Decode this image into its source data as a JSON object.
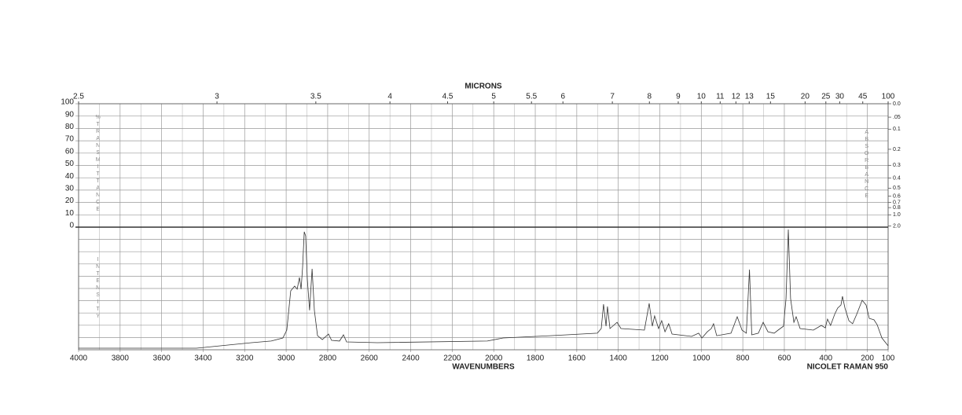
{
  "chart_data": {
    "type": "line",
    "title": "MICRONS",
    "xlabel": "WAVENUMBERS",
    "note": "NICOLET RAMAN 950",
    "ylabel": "%TRANSMITTANCE",
    "yright_label": "ABSORBANCE",
    "y2label": "INTENSITY",
    "xlim": [
      4000,
      100
    ],
    "xticks": [
      4000,
      3800,
      3600,
      3400,
      3200,
      3000,
      2800,
      2600,
      2400,
      2200,
      2000,
      1800,
      1600,
      1400,
      1200,
      1000,
      800,
      600,
      400,
      200,
      100
    ],
    "xminor": [
      3900,
      3700,
      3500,
      3300,
      3100,
      2900,
      2700,
      2500,
      2300,
      2100,
      1900,
      1700,
      1500,
      1300,
      1100,
      900,
      700,
      500,
      300
    ],
    "micron_ticks": [
      2.5,
      3,
      3.5,
      4,
      4.5,
      5,
      5.5,
      6,
      7,
      8,
      9,
      10,
      11,
      12,
      13,
      15,
      20,
      25,
      30,
      45,
      100
    ],
    "ylim": [
      0,
      100
    ],
    "yticks": [
      0,
      10,
      20,
      30,
      40,
      50,
      60,
      70,
      80,
      90,
      100
    ],
    "absorbance_ticks": [
      {
        "value": 0,
        "label": "0.0"
      },
      {
        "value": 0.05,
        "label": ".05"
      },
      0.1,
      0.2,
      0.3,
      0.4,
      0.5,
      0.6,
      0.7,
      0.8,
      {
        "value": 1,
        "label": "1.0"
      },
      {
        "value": 2,
        "label": "2.0"
      }
    ],
    "y2lim": [
      0,
      100
    ],
    "y2grid": [
      10,
      20,
      30,
      40,
      50,
      60,
      70,
      80,
      90
    ],
    "grid": true,
    "series": [
      {
        "color": "#333333",
        "axis": "y2",
        "x": [
          4000,
          3432,
          3318,
          3167,
          3072,
          3016,
          2997,
          2978,
          2959,
          2947,
          2936,
          2928,
          2921,
          2913,
          2906,
          2898,
          2887,
          2875,
          2864,
          2849,
          2826,
          2796,
          2781,
          2743,
          2724,
          2709,
          2561,
          2031,
          1955,
          1728,
          1501,
          1482,
          1471,
          1459,
          1452,
          1440,
          1406,
          1387,
          1274,
          1251,
          1236,
          1225,
          1206,
          1191,
          1175,
          1157,
          1141,
          1047,
          1013,
          997,
          971,
          952,
          941,
          926,
          857,
          827,
          804,
          783,
          768,
          757,
          725,
          702,
          679,
          649,
          630,
          604,
          592,
          581,
          570,
          554,
          543,
          524,
          460,
          422,
          403,
          392,
          377,
          358,
          343,
          327,
          320,
          308,
          289,
          271,
          252,
          225,
          206,
          191,
          168,
          153,
          130,
          100
        ],
        "values": [
          1.3,
          1.3,
          3.2,
          5.8,
          7.1,
          9.6,
          16,
          48.1,
          51.9,
          49.4,
          59,
          49.4,
          67.3,
          96.2,
          92.9,
          57.7,
          32.1,
          66,
          32.1,
          11.5,
          8.3,
          12.8,
          7.7,
          7.1,
          12.2,
          6.4,
          5.8,
          7.1,
          9.6,
          11.5,
          13.5,
          17.3,
          37.2,
          19.2,
          35.3,
          17.3,
          22.4,
          17.3,
          16,
          37.8,
          19.2,
          27.6,
          17.3,
          23.7,
          14.7,
          21.2,
          12.8,
          10.9,
          13.5,
          9.6,
          14.7,
          17.3,
          21.2,
          11.5,
          13.5,
          26.9,
          16,
          13.5,
          65.4,
          12.2,
          13.5,
          22.4,
          14.7,
          13.5,
          16,
          19.2,
          41.7,
          98.1,
          41.7,
          22.4,
          26.9,
          17.3,
          16,
          19.9,
          17.9,
          25,
          19.9,
          28.8,
          34,
          36.5,
          43.6,
          34,
          23.7,
          21.2,
          28.8,
          40.4,
          36.5,
          25.6,
          24.4,
          20.5,
          9.6,
          3.2
        ]
      }
    ]
  }
}
